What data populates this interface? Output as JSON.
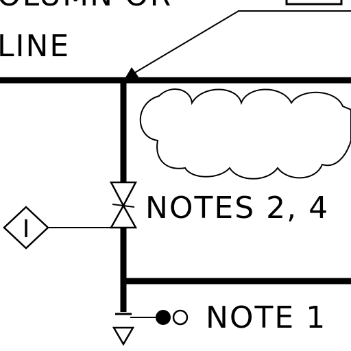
{
  "labels": {
    "column_top": "OLUMN OR",
    "column_line": "LINE",
    "notes_ref": "NOTES 2, 4",
    "note_ref": "NOTE 1",
    "instrument_tag": "I"
  },
  "colors": {
    "ink": "#000000",
    "paper": "#ffffff"
  }
}
